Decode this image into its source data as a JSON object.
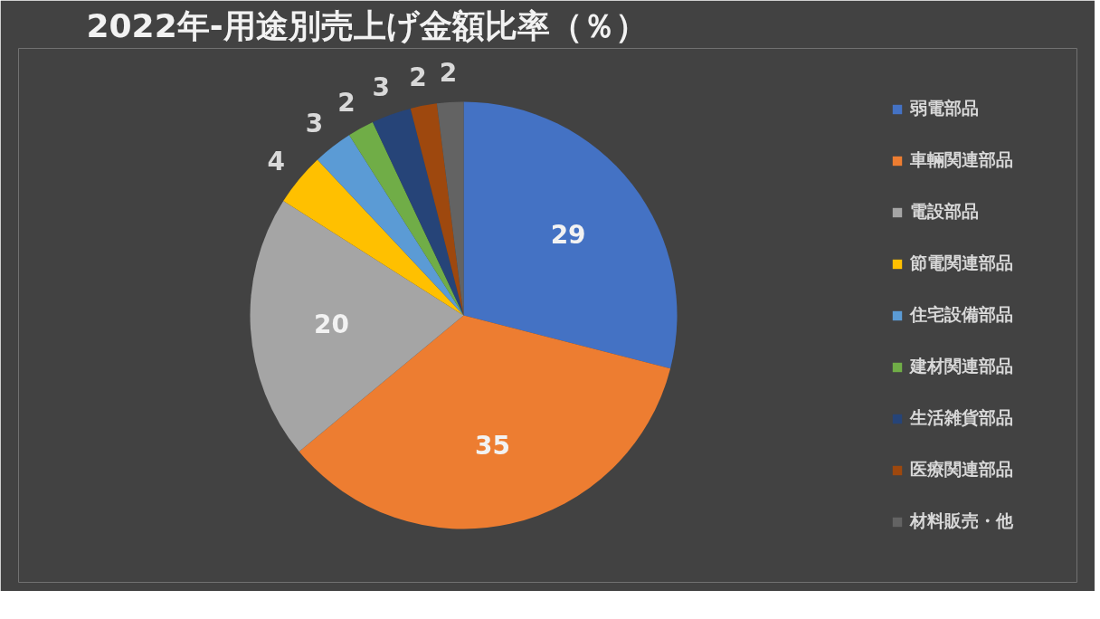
{
  "chart_data": {
    "type": "pie",
    "title": "2022年-用途別売上げ金額比率（％）",
    "categories": [
      "弱電部品",
      "車輛関連部品",
      "電設部品",
      "節電関連部品",
      "住宅設備部品",
      "建材関連部品",
      "生活雑貨部品",
      "医療関連部品",
      "材料販売・他"
    ],
    "values": [
      29,
      35,
      20,
      4,
      3,
      2,
      3,
      2,
      2
    ],
    "colors": [
      "#4472c4",
      "#ed7d31",
      "#a5a5a5",
      "#ffc000",
      "#5b9bd5",
      "#70ad47",
      "#264478",
      "#9e480e",
      "#636363"
    ],
    "data_labels": true,
    "legend": "right"
  }
}
